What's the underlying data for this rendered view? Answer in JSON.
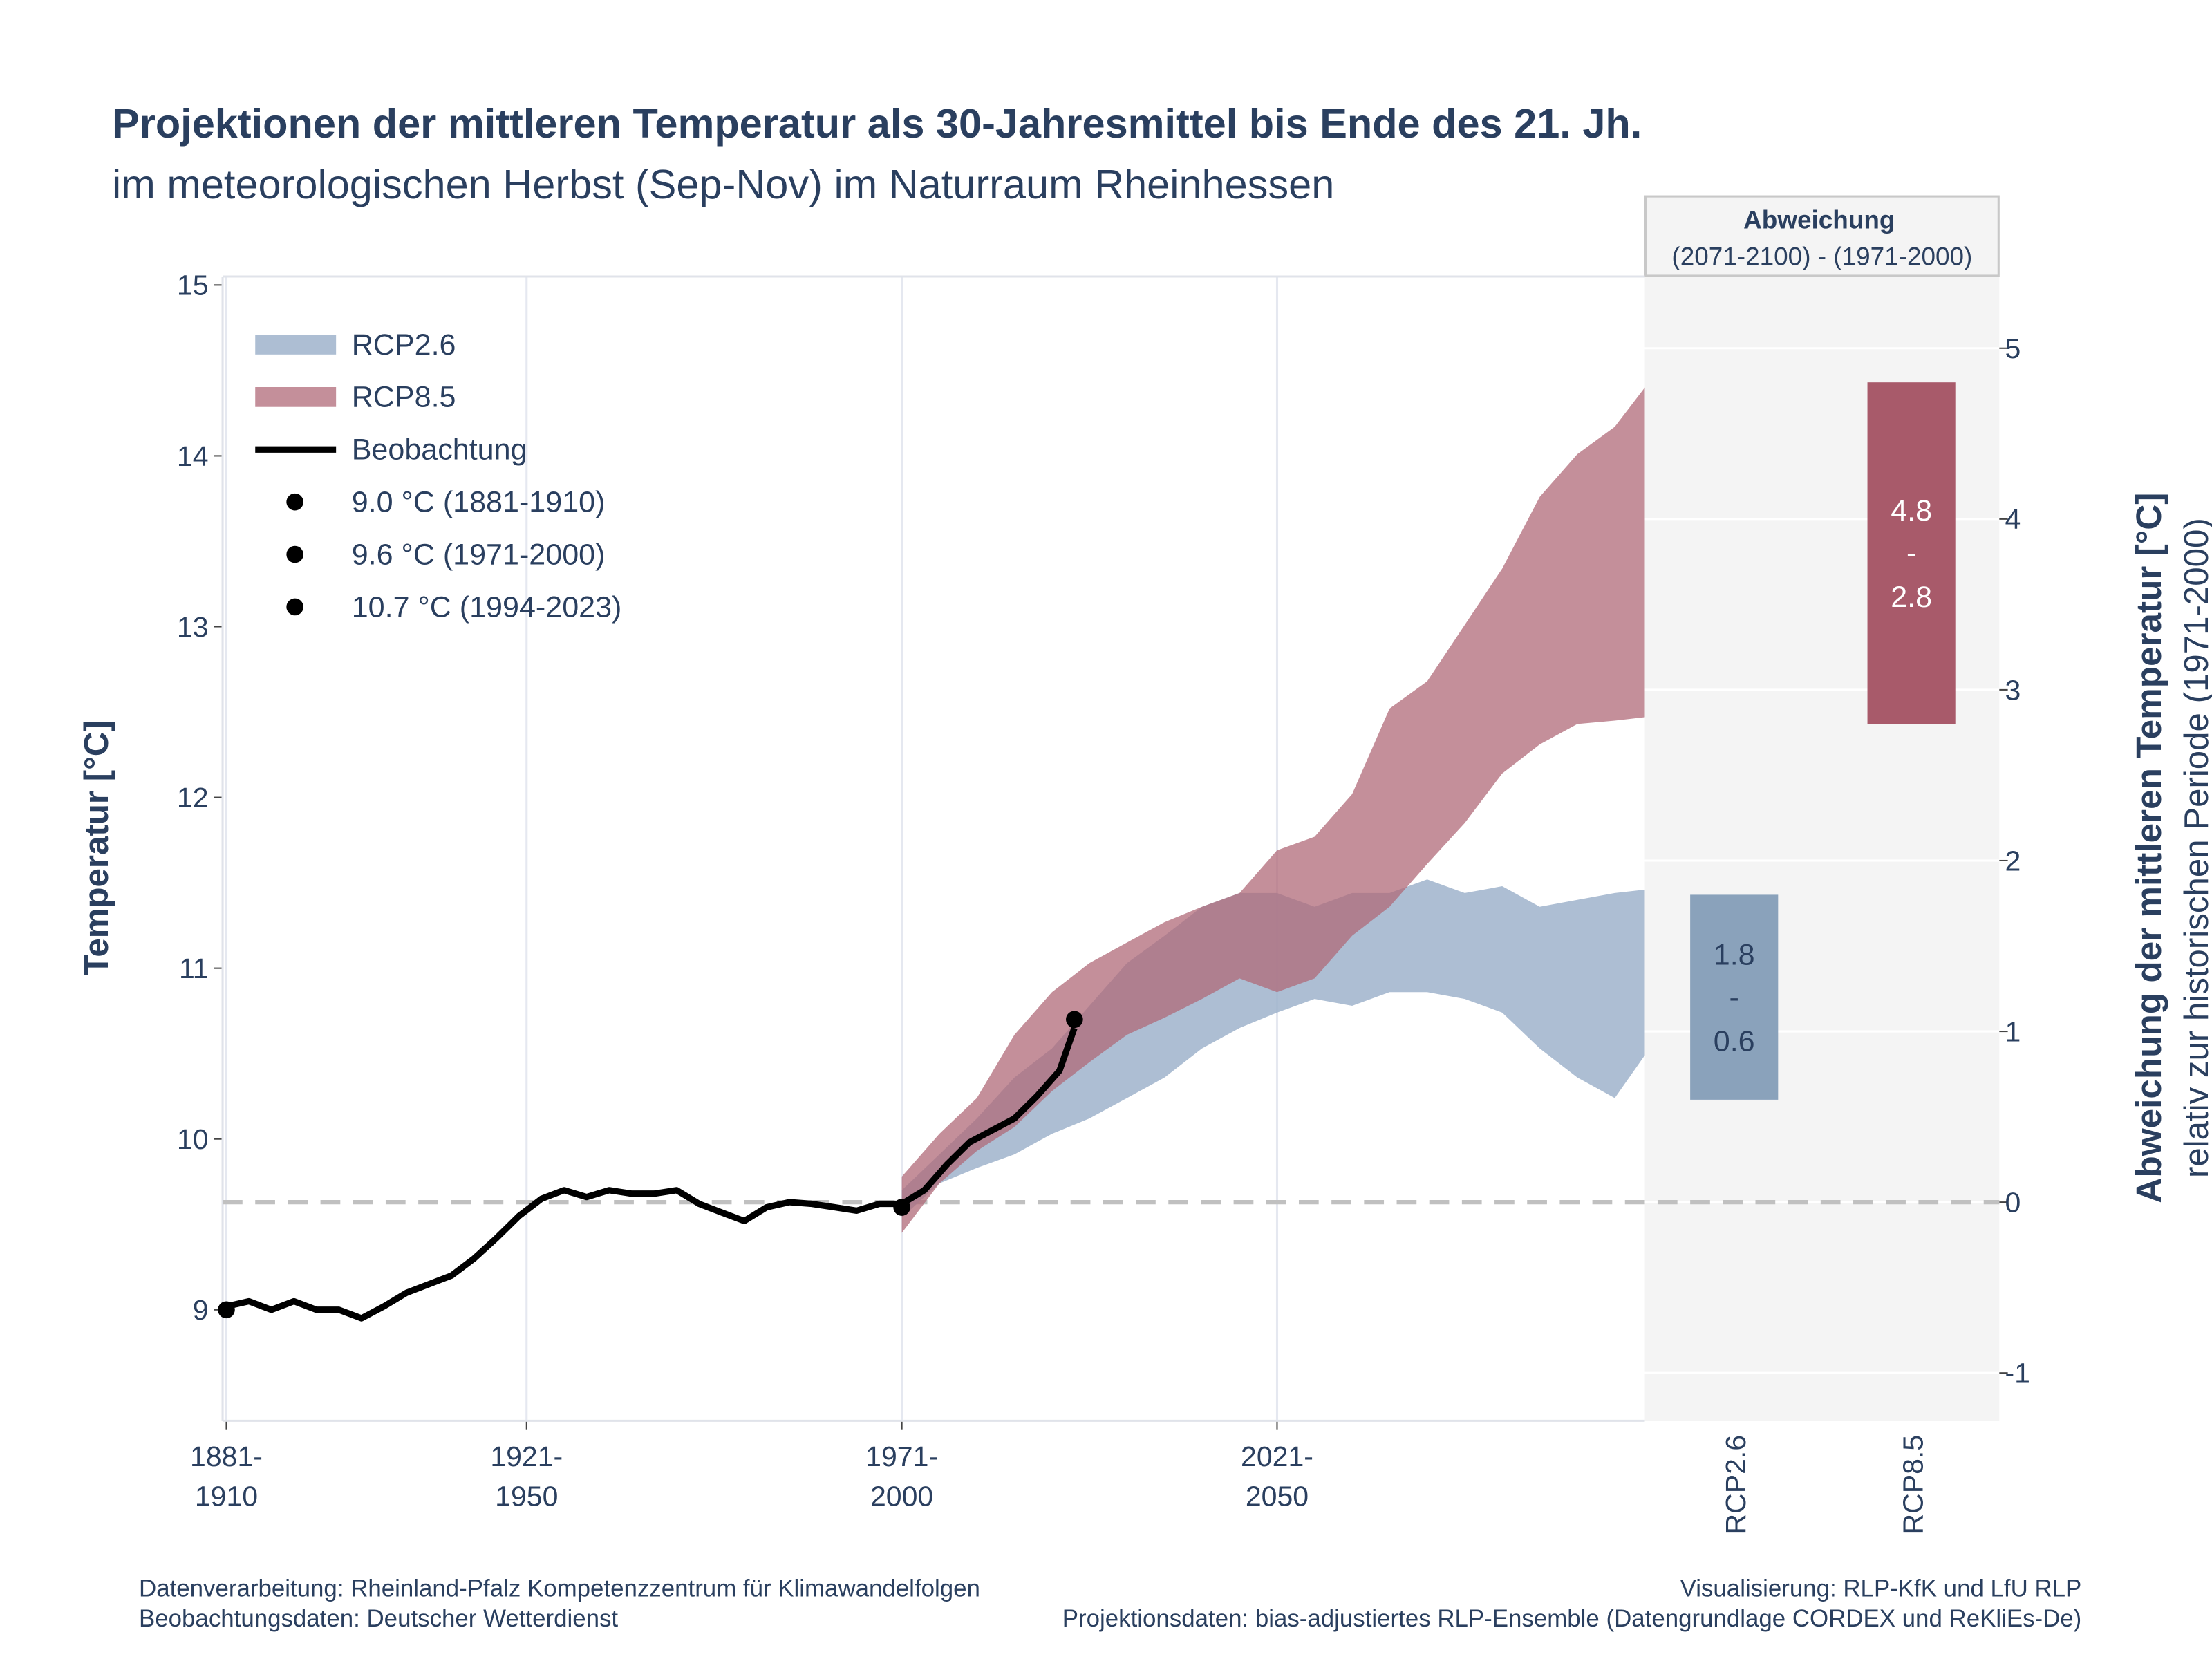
{
  "chart_data": {
    "type": "line",
    "title": "Projektionen der mittleren Temperatur als 30-Jahresmittel bis Ende des 21. Jh.",
    "subtitle": "im meteorologischen Herbst (Sep-Nov) im Naturraum Rheinhessen",
    "y_label": "Temperatur [°C]",
    "y2_label": "Abweichung der mittleren Temperatur [°C]",
    "y2_sublabel": "relativ zur historischen Periode (1971-2000)",
    "xlim": [
      1880.5,
      2070
    ],
    "ylim": [
      8.35,
      15.05
    ],
    "y2lim": [
      -1.28,
      5.42
    ],
    "xticks": [
      {
        "value": 1881,
        "label": "1881-1910"
      },
      {
        "value": 1921,
        "label": "1921-1950"
      },
      {
        "value": 1971,
        "label": "1971-2000"
      },
      {
        "value": 2021,
        "label": "2021-2050"
      }
    ],
    "yticks": [
      9,
      10,
      11,
      12,
      13,
      14,
      15
    ],
    "y2ticks": [
      -1,
      0,
      1,
      2,
      3,
      4,
      5
    ],
    "grid": true,
    "legend": "top-left",
    "reference_line": 9.63,
    "bands": [
      {
        "name": "RCP2.6",
        "color": "#9fb3cb",
        "x": [
          1971,
          1976,
          1981,
          1986,
          1991,
          1996,
          2001,
          2006,
          2011,
          2016,
          2021,
          2026,
          2031,
          2036,
          2041,
          2046,
          2051,
          2056,
          2061,
          2066,
          2070
        ],
        "lower": [
          9.54,
          9.74,
          9.83,
          9.91,
          10.03,
          10.12,
          10.24,
          10.36,
          10.53,
          10.65,
          10.74,
          10.82,
          10.78,
          10.86,
          10.86,
          10.82,
          10.74,
          10.53,
          10.36,
          10.24,
          10.49
        ],
        "upper": [
          9.7,
          9.91,
          10.12,
          10.36,
          10.53,
          10.78,
          11.03,
          11.19,
          11.36,
          11.44,
          11.44,
          11.36,
          11.44,
          11.44,
          11.52,
          11.44,
          11.48,
          11.36,
          11.4,
          11.44,
          11.46
        ]
      },
      {
        "name": "RCP8.5",
        "color": "#b06a78",
        "x": [
          1971,
          1976,
          1981,
          1986,
          1991,
          1996,
          2001,
          2006,
          2011,
          2016,
          2021,
          2026,
          2031,
          2036,
          2041,
          2046,
          2051,
          2056,
          2061,
          2066,
          2070
        ],
        "lower": [
          9.45,
          9.74,
          9.93,
          10.07,
          10.28,
          10.45,
          10.61,
          10.71,
          10.82,
          10.94,
          10.86,
          10.94,
          11.19,
          11.36,
          11.61,
          11.85,
          12.14,
          12.31,
          12.43,
          12.45,
          12.47
        ],
        "upper": [
          9.78,
          10.03,
          10.24,
          10.61,
          10.86,
          11.03,
          11.15,
          11.27,
          11.36,
          11.44,
          11.69,
          11.77,
          12.02,
          12.52,
          12.68,
          13.01,
          13.34,
          13.76,
          14.01,
          14.17,
          14.4
        ]
      }
    ],
    "series": [
      {
        "name": "Beobachtung",
        "color": "#000000",
        "x": [
          1881,
          1884,
          1887,
          1890,
          1893,
          1896,
          1899,
          1902,
          1905,
          1908,
          1911,
          1914,
          1917,
          1920,
          1923,
          1926,
          1929,
          1932,
          1935,
          1938,
          1941,
          1944,
          1947,
          1950,
          1953,
          1956,
          1959,
          1962,
          1965,
          1968,
          1971,
          1974,
          1977,
          1980,
          1983,
          1986,
          1989,
          1992,
          1994
        ],
        "values": [
          9.02,
          9.05,
          9.0,
          9.05,
          9.0,
          9.0,
          8.95,
          9.02,
          9.1,
          9.15,
          9.2,
          9.3,
          9.42,
          9.55,
          9.65,
          9.7,
          9.66,
          9.7,
          9.68,
          9.68,
          9.7,
          9.62,
          9.57,
          9.52,
          9.6,
          9.63,
          9.62,
          9.6,
          9.58,
          9.62,
          9.62,
          9.7,
          9.85,
          9.98,
          10.05,
          10.12,
          10.25,
          10.4,
          10.65
        ]
      }
    ],
    "points": [
      {
        "name": "9.0 °C (1881-1910)",
        "x": 1881,
        "value": 9.0
      },
      {
        "name": "9.6 °C (1971-2000)",
        "x": 1971,
        "value": 9.6
      },
      {
        "name": "10.7 °C (1994-2023)",
        "x": 1994,
        "value": 10.7
      }
    ],
    "panel": {
      "title": "Abweichung",
      "subtitle": "(2071-2100) - (1971-2000)",
      "categories": [
        "RCP2.6",
        "RCP8.5"
      ],
      "low": [
        0.6,
        2.8
      ],
      "high": [
        1.8,
        4.8
      ],
      "colors": [
        "#8aa2bb",
        "#a85a6a"
      ],
      "range_separator": "-"
    },
    "footer": {
      "left": [
        "Datenverarbeitung: Rheinland-Pfalz Kompetenzzentrum für Klimawandelfolgen",
        "Beobachtungsdaten:  Deutscher Wetterdienst"
      ],
      "right": [
        "Visualisierung: RLP-KfK und LfU RLP",
        "Projektionsdaten: bias-adjustiertes RLP-Ensemble (Datengrundlage CORDEX und ReKliEs-De)"
      ]
    }
  }
}
